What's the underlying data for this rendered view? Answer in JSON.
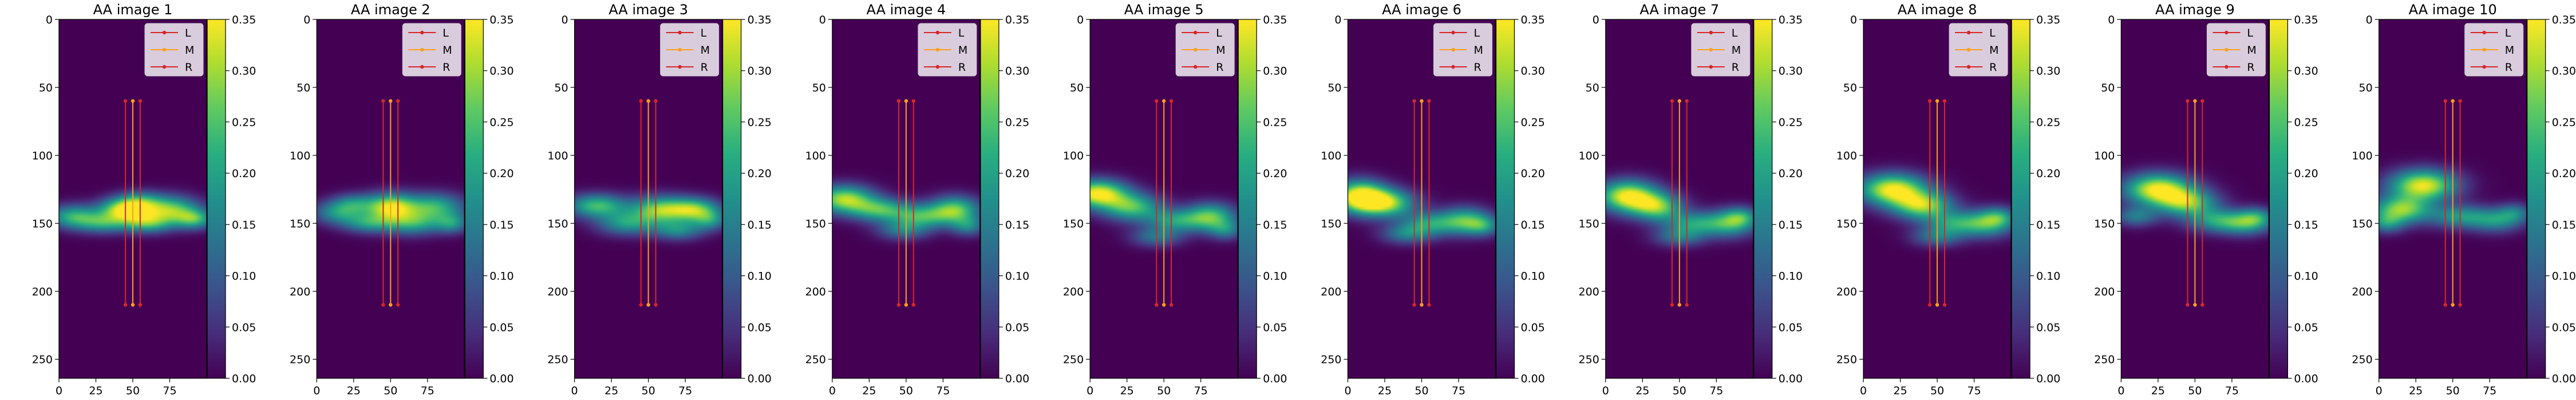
{
  "chart_data": {
    "type": "heatmap",
    "colormap": "viridis",
    "image_shape": {
      "rows": 264,
      "cols": 100
    },
    "xlim": [
      0,
      100
    ],
    "ylim": [
      264,
      0
    ],
    "x_ticks": [
      "0",
      "25",
      "50",
      "75"
    ],
    "y_ticks": [
      "0",
      "50",
      "100",
      "150",
      "200",
      "250"
    ],
    "colorbar": {
      "range": [
        0,
        0.35
      ],
      "ticks": [
        "0.00",
        "0.05",
        "0.10",
        "0.15",
        "0.20",
        "0.25",
        "0.30",
        "0.35"
      ]
    },
    "legend": {
      "placement": "upper-right",
      "entries": [
        {
          "label": "L",
          "color": "#d62728"
        },
        {
          "label": "M",
          "color": "#ff9f1c"
        },
        {
          "label": "R",
          "color": "#d62728"
        }
      ]
    },
    "lines": [
      {
        "name": "L",
        "x": 45,
        "y_start": 60,
        "y_end": 210,
        "color": "#d62728"
      },
      {
        "name": "M",
        "x": 50,
        "y_start": 60,
        "y_end": 210,
        "color": "#ff9f1c"
      },
      {
        "name": "R",
        "x": 55,
        "y_start": 60,
        "y_end": 210,
        "color": "#d62728"
      }
    ],
    "panels": [
      {
        "title": "AA image 1",
        "blobs": [
          [
            45,
            140,
            12,
            6,
            0.34
          ],
          [
            10,
            145,
            12,
            6,
            0.22
          ],
          [
            75,
            140,
            14,
            7,
            0.27
          ],
          [
            92,
            147,
            9,
            5,
            0.2
          ],
          [
            30,
            150,
            12,
            5,
            0.17
          ],
          [
            60,
            150,
            12,
            5,
            0.2
          ],
          [
            55,
            133,
            10,
            5,
            0.12
          ]
        ]
      },
      {
        "title": "AA image 2",
        "blobs": [
          [
            50,
            138,
            12,
            7,
            0.32
          ],
          [
            15,
            142,
            12,
            6,
            0.18
          ],
          [
            80,
            138,
            14,
            7,
            0.22
          ],
          [
            35,
            150,
            12,
            5,
            0.16
          ],
          [
            65,
            150,
            14,
            6,
            0.19
          ],
          [
            92,
            150,
            8,
            5,
            0.15
          ],
          [
            25,
            135,
            10,
            5,
            0.12
          ]
        ]
      },
      {
        "title": "AA image 3",
        "blobs": [
          [
            15,
            137,
            14,
            6,
            0.24
          ],
          [
            58,
            140,
            14,
            7,
            0.27
          ],
          [
            82,
            140,
            12,
            6,
            0.25
          ],
          [
            35,
            150,
            14,
            6,
            0.18
          ],
          [
            70,
            155,
            12,
            5,
            0.16
          ],
          [
            92,
            148,
            8,
            5,
            0.14
          ]
        ]
      },
      {
        "title": "AA image 4",
        "blobs": [
          [
            8,
            132,
            14,
            7,
            0.3
          ],
          [
            32,
            140,
            14,
            6,
            0.22
          ],
          [
            60,
            145,
            14,
            6,
            0.2
          ],
          [
            83,
            140,
            12,
            7,
            0.26
          ],
          [
            48,
            155,
            12,
            5,
            0.14
          ],
          [
            92,
            152,
            8,
            5,
            0.14
          ]
        ]
      },
      {
        "title": "AA image 5",
        "blobs": [
          [
            5,
            128,
            14,
            7,
            0.35
          ],
          [
            28,
            138,
            14,
            7,
            0.24
          ],
          [
            58,
            148,
            14,
            6,
            0.18
          ],
          [
            82,
            145,
            12,
            7,
            0.24
          ],
          [
            45,
            160,
            12,
            5,
            0.13
          ],
          [
            92,
            155,
            8,
            5,
            0.13
          ]
        ]
      },
      {
        "title": "AA image 6",
        "blobs": [
          [
            8,
            130,
            12,
            8,
            0.35
          ],
          [
            25,
            135,
            14,
            7,
            0.3
          ],
          [
            55,
            150,
            14,
            6,
            0.18
          ],
          [
            80,
            148,
            12,
            7,
            0.22
          ],
          [
            40,
            158,
            12,
            5,
            0.14
          ],
          [
            92,
            152,
            8,
            5,
            0.13
          ]
        ]
      },
      {
        "title": "AA image 7",
        "blobs": [
          [
            15,
            130,
            14,
            8,
            0.35
          ],
          [
            35,
            138,
            12,
            7,
            0.25
          ],
          [
            60,
            150,
            14,
            6,
            0.18
          ],
          [
            85,
            150,
            12,
            7,
            0.2
          ],
          [
            50,
            160,
            12,
            5,
            0.13
          ],
          [
            92,
            145,
            8,
            5,
            0.13
          ]
        ]
      },
      {
        "title": "AA image 8",
        "blobs": [
          [
            20,
            125,
            16,
            8,
            0.35
          ],
          [
            40,
            137,
            14,
            7,
            0.28
          ],
          [
            62,
            150,
            14,
            6,
            0.18
          ],
          [
            85,
            150,
            12,
            7,
            0.2
          ],
          [
            50,
            160,
            12,
            5,
            0.13
          ],
          [
            92,
            145,
            8,
            5,
            0.12
          ]
        ]
      },
      {
        "title": "AA image 9",
        "blobs": [
          [
            25,
            125,
            16,
            8,
            0.35
          ],
          [
            45,
            135,
            14,
            7,
            0.25
          ],
          [
            65,
            148,
            14,
            6,
            0.18
          ],
          [
            85,
            150,
            12,
            6,
            0.18
          ],
          [
            10,
            145,
            10,
            5,
            0.14
          ],
          [
            92,
            145,
            8,
            5,
            0.12
          ]
        ]
      },
      {
        "title": "AA image 10",
        "blobs": [
          [
            30,
            122,
            16,
            8,
            0.34
          ],
          [
            15,
            140,
            14,
            7,
            0.28
          ],
          [
            55,
            145,
            14,
            6,
            0.18
          ],
          [
            80,
            148,
            12,
            6,
            0.16
          ],
          [
            92,
            142,
            8,
            5,
            0.12
          ],
          [
            5,
            150,
            8,
            5,
            0.14
          ]
        ]
      }
    ]
  }
}
